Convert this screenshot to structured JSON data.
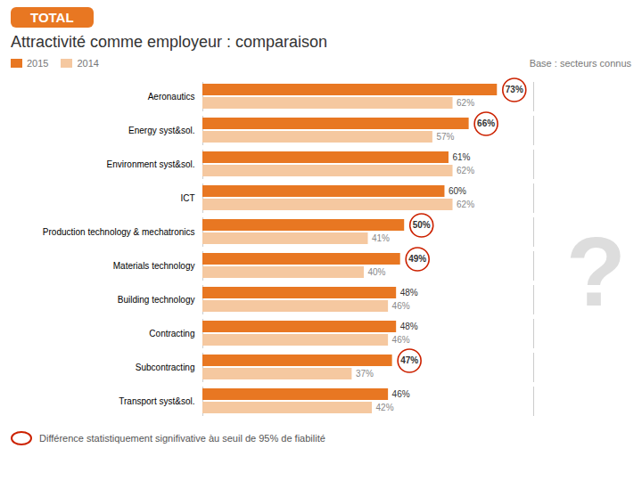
{
  "chart_data": {
    "type": "bar",
    "orientation": "horizontal",
    "title": "Attractivité comme employeur : comparaison",
    "subtitle": "Base : secteurs connus",
    "badge": "TOTAL",
    "badge_color": "#E87722",
    "footnote": "Différence statistiquement signifivative àu seuil de 95% de fiabilité",
    "circle_color": "#CC2200",
    "watermark": "?",
    "watermark_color": "#DDDDDD",
    "categories": [
      "Aeronautics",
      "Energy syst&sol.",
      "Environment syst&sol.",
      "ICT",
      "Production technology & mechatronics",
      "Materials technology",
      "Building technology",
      "Contracting",
      "Subcontracting",
      "Transport syst&sol."
    ],
    "series": [
      {
        "name": "2015",
        "color": "#E87722",
        "values": [
          73,
          66,
          61,
          60,
          50,
          49,
          48,
          48,
          47,
          46
        ],
        "value_labels": [
          "73%",
          "66%",
          "61%",
          "60%",
          "50%",
          "49%",
          "48%",
          "48%",
          "47%",
          "46%"
        ],
        "circled": [
          true,
          true,
          false,
          false,
          true,
          true,
          false,
          false,
          true,
          false
        ]
      },
      {
        "name": "2014",
        "color": "#F5C8A0",
        "values": [
          62,
          57,
          62,
          62,
          41,
          40,
          46,
          46,
          37,
          42
        ],
        "value_labels": [
          "62%",
          "57%",
          "62%",
          "62%",
          "41%",
          "40%",
          "46%",
          "46%",
          "37%",
          "42%"
        ]
      }
    ],
    "xlim": [
      0,
      82
    ],
    "data_labels": true,
    "tick_labels": "y",
    "legend": "upper right",
    "grid": false
  }
}
